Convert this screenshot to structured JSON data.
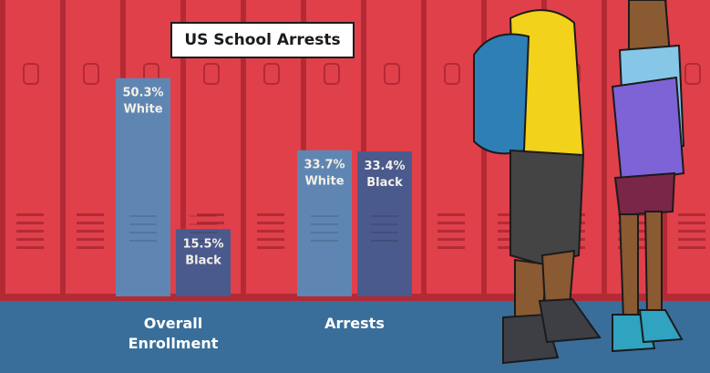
{
  "chart_data": {
    "type": "bar",
    "title": "US School Arrests",
    "groups": [
      {
        "label_lines": [
          "Overall",
          "Enrollment"
        ],
        "bars": [
          {
            "group": "White",
            "value": 50.3,
            "value_text": "50.3%",
            "color": "#5f86b3"
          },
          {
            "group": "Black",
            "value": 15.5,
            "value_text": "15.5%",
            "color": "#4a5a8c"
          }
        ]
      },
      {
        "label_lines": [
          "Arrests"
        ],
        "bars": [
          {
            "group": "White",
            "value": 33.7,
            "value_text": "33.7%",
            "color": "#5f86b3"
          },
          {
            "group": "Black",
            "value": 33.4,
            "value_text": "33.4%",
            "color": "#4a5a8c"
          }
        ]
      }
    ],
    "ylim": [
      0,
      62
    ]
  },
  "colors": {
    "locker": "#e0404a",
    "locker_dark": "#b32a35",
    "floor": "#3a6e9a"
  }
}
